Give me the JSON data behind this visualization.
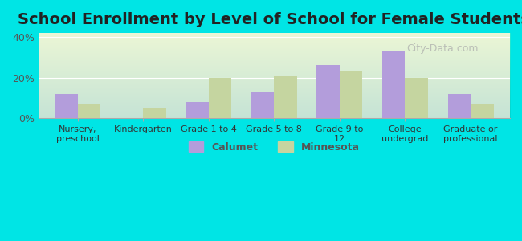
{
  "title": "School Enrollment by Level of School for Female Students",
  "categories": [
    "Nursery,\npreschool",
    "Kindergarten",
    "Grade 1 to 4",
    "Grade 5 to 8",
    "Grade 9 to\n12",
    "College\nundergrad",
    "Graduate or\nprofessional"
  ],
  "calumet": [
    12,
    0,
    8,
    13,
    26,
    33,
    12
  ],
  "minnesota": [
    7,
    5,
    20,
    21,
    23,
    20,
    7
  ],
  "calumet_color": "#b39ddb",
  "minnesota_color": "#c5d5a0",
  "background_color": "#00e5e5",
  "plot_bg_start": "#e8f5e9",
  "plot_bg_end": "#ffffff",
  "ylim": [
    0,
    42
  ],
  "yticks": [
    0,
    20,
    40
  ],
  "ytick_labels": [
    "0%",
    "20%",
    "40%"
  ],
  "title_fontsize": 14,
  "legend_labels": [
    "Calumet",
    "Minnesota"
  ],
  "bar_width": 0.35
}
